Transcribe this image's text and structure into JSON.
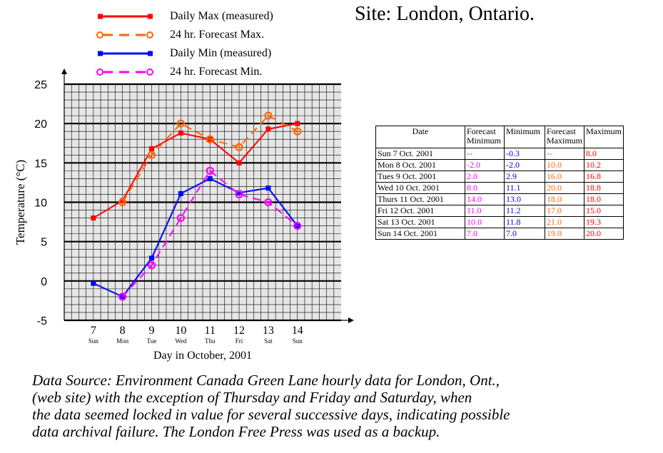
{
  "site_title": "Site: London, Ontario.",
  "legend": [
    {
      "label": "Daily Max (measured)",
      "color": "#ff0000",
      "dash": "solid",
      "marker": "square"
    },
    {
      "label": "24 hr. Forecast Max.",
      "color": "#ff6600",
      "dash": "dashed",
      "marker": "circle"
    },
    {
      "label": "Daily Min (measured)",
      "color": "#0000ff",
      "dash": "solid",
      "marker": "square"
    },
    {
      "label": "24 hr. Forecast Min.",
      "color": "#ff00ff",
      "dash": "dashed",
      "marker": "circle"
    }
  ],
  "chart_data": {
    "type": "line",
    "xlabel": "Day in October, 2001",
    "ylabel": "Temperature (°C)",
    "x": [
      7,
      8,
      9,
      10,
      11,
      12,
      13,
      14
    ],
    "x_day_names": [
      "Sun",
      "Mon",
      "Tue",
      "Wed",
      "Thu",
      "Fri",
      "Sat",
      "Sun"
    ],
    "xlim": [
      6,
      15.5
    ],
    "ylim": [
      -5,
      25
    ],
    "y_ticks": [
      -5,
      0,
      5,
      10,
      15,
      20,
      25
    ],
    "grid": true,
    "series": [
      {
        "name": "Daily Max (measured)",
        "color": "#ff0000",
        "dash": "solid",
        "marker": "square",
        "values": [
          8.0,
          10.2,
          16.8,
          18.8,
          18.0,
          15.0,
          19.3,
          20.0
        ]
      },
      {
        "name": "24 hr. Forecast Max.",
        "color": "#ff6600",
        "dash": "dashed",
        "marker": "circle",
        "values": [
          null,
          10.0,
          16.0,
          20.0,
          18.0,
          17.0,
          21.0,
          19.0
        ]
      },
      {
        "name": "Daily Min (measured)",
        "color": "#0000ff",
        "dash": "solid",
        "marker": "square",
        "values": [
          -0.3,
          -2.0,
          2.9,
          11.1,
          13.0,
          11.2,
          11.8,
          7.0
        ]
      },
      {
        "name": "24 hr. Forecast Min.",
        "color": "#ff00ff",
        "dash": "dashed",
        "marker": "circle",
        "values": [
          null,
          -2.0,
          2.0,
          8.0,
          14.0,
          11.0,
          10.0,
          7.0
        ]
      }
    ]
  },
  "table": {
    "headers": {
      "date": "Date",
      "fmin": [
        "Forecast",
        "Minimum"
      ],
      "min": "Minimum",
      "fmax": [
        "Forecast",
        "Maximum"
      ],
      "max": "Maximum"
    },
    "rows": [
      {
        "date": "Sun 7 Oct. 2001",
        "fmin": "--",
        "min": "-0.3",
        "fmax": "--",
        "max": "8.0"
      },
      {
        "date": "Mon 8 Oct. 2001",
        "fmin": "-2.0",
        "min": "-2.0",
        "fmax": "10.0",
        "max": "10.2"
      },
      {
        "date": "Tues 9 Oct. 2001",
        "fmin": "2.0",
        "min": "2.9",
        "fmax": "16.0",
        "max": "16.8"
      },
      {
        "date": "Wed 10 Oct. 2001",
        "fmin": "8.0",
        "min": "11.1",
        "fmax": "20.0",
        "max": "18.8"
      },
      {
        "date": "Thurs 11 Oct. 2001",
        "fmin": "14.0",
        "min": "13.0",
        "fmax": "18.0",
        "max": "18.0"
      },
      {
        "date": "Fri 12 Oct. 2001",
        "fmin": "11.0",
        "min": "11.2",
        "fmax": "17.0",
        "max": "15.0"
      },
      {
        "date": "Sat 13 Oct. 2001",
        "fmin": "10.0",
        "min": "11.8",
        "fmax": "21.0",
        "max": "19.3"
      },
      {
        "date": "Sun 14 Oct. 2001",
        "fmin": "7.0",
        "min": "7.0",
        "fmax": "19.0",
        "max": "20.0"
      }
    ]
  },
  "note_lines": [
    "Data Source: Environment Canada Green Lane hourly data for London, Ont.,",
    "(web site) with the exception of Thursday and Friday and Saturday, when",
    "the data seemed locked in value for several successive days, indicating possible",
    "data archival failure.  The London Free Press was used as a backup."
  ]
}
